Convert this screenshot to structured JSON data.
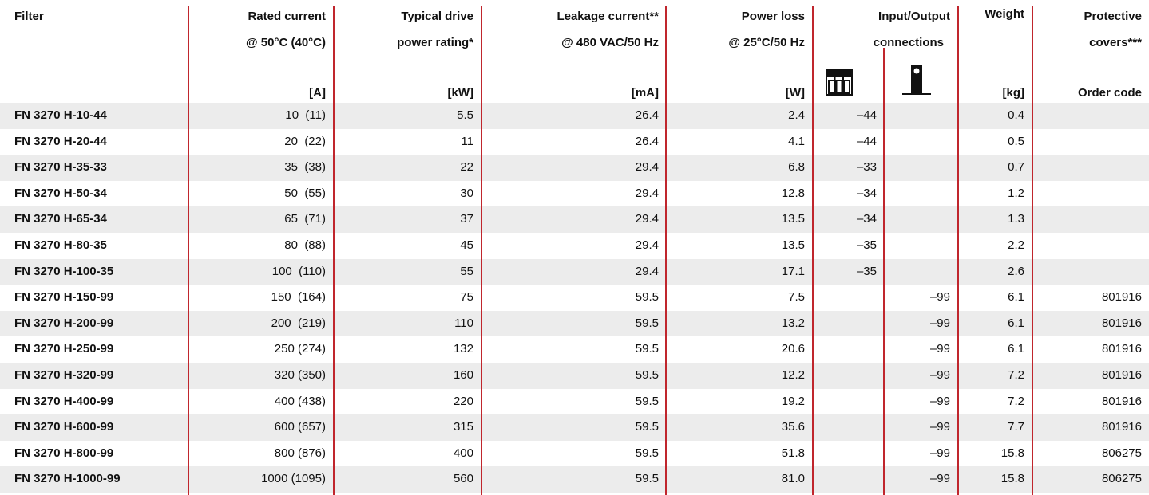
{
  "table": {
    "header": [
      [
        "Filter",
        "Rated current",
        "Typical drive",
        "Leakage current**",
        "Power loss",
        "Input/Output",
        "Weight",
        "Protective"
      ],
      [
        "@ 50°C (40°C)",
        "power rating*",
        "@ 480 VAC/50 Hz",
        "@ 25°C/50 Hz",
        "connections",
        "covers***"
      ],
      [
        "[A]",
        "[kW]",
        "[mA]",
        "[W]",
        "[kg]",
        "Order code"
      ]
    ],
    "rows": [
      [
        "FN 3270 H-10-44",
        "10  (11)",
        "5.5",
        "26.4",
        "2.4",
        "–44",
        null,
        "0.4",
        null
      ],
      [
        "FN 3270 H-20-44",
        "20  (22)",
        "11",
        "26.4",
        "4.1",
        "–44",
        null,
        "0.5",
        null
      ],
      [
        "FN 3270 H-35-33",
        "35  (38)",
        "22",
        "29.4",
        "6.8",
        "–33",
        null,
        "0.7",
        null
      ],
      [
        "FN 3270 H-50-34",
        "50  (55)",
        "30",
        "29.4",
        "12.8",
        "–34",
        null,
        "1.2",
        null
      ],
      [
        "FN 3270 H-65-34",
        "65  (71)",
        "37",
        "29.4",
        "13.5",
        "–34",
        null,
        "1.3",
        null
      ],
      [
        "FN 3270 H-80-35",
        "80  (88)",
        "45",
        "29.4",
        "13.5",
        "–35",
        null,
        "2.2",
        null
      ],
      [
        "FN 3270 H-100-35",
        "100  (110)",
        "55",
        "29.4",
        "17.1",
        "–35",
        null,
        "2.6",
        null
      ],
      [
        "FN 3270 H-150-99",
        "150  (164)",
        "75",
        "59.5",
        "7.5",
        null,
        "–99",
        "6.1",
        "801916"
      ],
      [
        "FN 3270 H-200-99",
        "200  (219)",
        "110",
        "59.5",
        "13.2",
        null,
        "–99",
        "6.1",
        "801916"
      ],
      [
        "FN 3270 H-250-99",
        "250 (274)",
        "132",
        "59.5",
        "20.6",
        null,
        "–99",
        "6.1",
        "801916"
      ],
      [
        "FN 3270 H-320-99",
        "320 (350)",
        "160",
        "59.5",
        "12.2",
        null,
        "–99",
        "7.2",
        "801916"
      ],
      [
        "FN 3270 H-400-99",
        "400 (438)",
        "220",
        "59.5",
        "19.2",
        null,
        "–99",
        "7.2",
        "801916"
      ],
      [
        "FN 3270 H-600-99",
        "600 (657)",
        "315",
        "59.5",
        "35.6",
        null,
        "–99",
        "7.7",
        "801916"
      ],
      [
        "FN 3270 H-800-99",
        "800 (876)",
        "400",
        "59.5",
        "51.8",
        null,
        "–99",
        "15.8",
        "806275"
      ],
      [
        "FN 3270 H-1000-99",
        "1000 (1095)",
        "560",
        "59.5",
        "81.0",
        null,
        "–99",
        "15.8",
        "806275"
      ]
    ]
  }
}
